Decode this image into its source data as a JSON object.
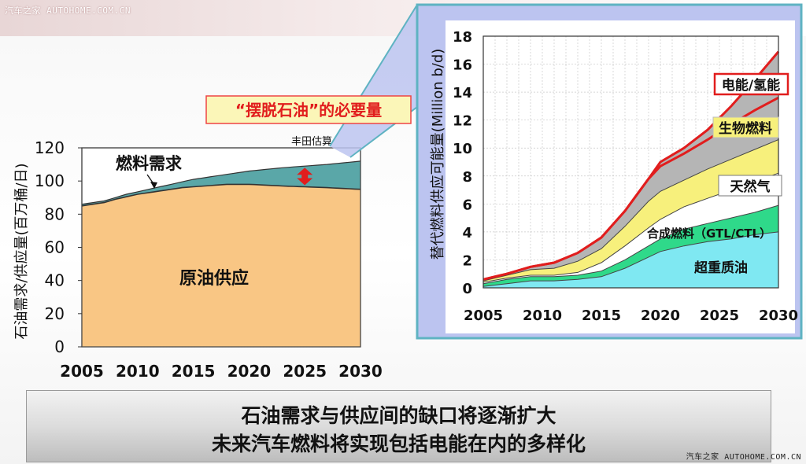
{
  "watermark_top": "汽车之家 AUTOHOME.COM.CN",
  "watermark_bottom": "汽车之家 AUTOHOME.COM.CN",
  "callout_label": "“摆脱石油”的必要量",
  "caption": {
    "line1": "石油需求与供应间的缺口将逐渐扩大",
    "line2": "未来汽车燃料将实现包括电能在内的多样化"
  },
  "colors": {
    "supply": "#f9c684",
    "gap": "#5aa7a8",
    "accent_red": "#e11d1d",
    "panel_border": "#5fb3c2",
    "panel_bg": "#bcc4f0",
    "heavy_oil": "#7fe8f2",
    "synthetic": "#2fd98a",
    "natural_gas": "#ffffff",
    "biofuel": "#f7f07c",
    "electric": "#b5b5b5"
  },
  "chart_data": [
    {
      "type": "area",
      "title": "",
      "ylabel": "石油需求/供应量(百万桶/日)",
      "xlabel": "",
      "xlim": [
        2005,
        2030
      ],
      "ylim": [
        0,
        120
      ],
      "x_ticks": [
        "2005",
        "2010",
        "2015",
        "2020",
        "2025",
        "2030"
      ],
      "y_ticks": [
        "0",
        "20",
        "40",
        "60",
        "80",
        "100",
        "120"
      ],
      "grid": false,
      "annotations": {
        "source": "丰田估算",
        "demand": "燃料需求",
        "supply": "原油供应"
      },
      "series": [
        {
          "name": "燃料需求",
          "x": [
            2005,
            2007,
            2009,
            2011,
            2013,
            2015,
            2017,
            2020,
            2023,
            2025,
            2027,
            2030
          ],
          "values": [
            86,
            88,
            92,
            95,
            98,
            101,
            103,
            106,
            108,
            109,
            110,
            112
          ]
        },
        {
          "name": "原油供应",
          "x": [
            2005,
            2007,
            2008,
            2010,
            2012,
            2014,
            2016,
            2018,
            2020,
            2023,
            2025,
            2027,
            2030
          ],
          "values": [
            85,
            87,
            89,
            92,
            94,
            96,
            97,
            98,
            98,
            97,
            96.5,
            96,
            95
          ]
        }
      ]
    },
    {
      "type": "area",
      "title": "",
      "ylabel": "替代燃料供应可能量(Million b/d)",
      "xlabel": "",
      "xlim": [
        2005,
        2030
      ],
      "ylim": [
        0,
        18
      ],
      "x_ticks": [
        "2005",
        "2010",
        "2015",
        "2020",
        "2025",
        "2030"
      ],
      "y_ticks": [
        "0",
        "2",
        "4",
        "6",
        "8",
        "10",
        "12",
        "14",
        "16",
        "18"
      ],
      "grid": true,
      "stacked": true,
      "legend_style": "inline labels",
      "x": [
        2005,
        2007,
        2009,
        2011,
        2013,
        2015,
        2017,
        2019,
        2020,
        2022,
        2024,
        2026,
        2028,
        2030
      ],
      "series": [
        {
          "name": "超重质油",
          "values": [
            0.1,
            0.3,
            0.5,
            0.5,
            0.6,
            0.8,
            1.4,
            2.2,
            2.6,
            3.0,
            3.3,
            3.5,
            3.8,
            4.0
          ]
        },
        {
          "name": "合成燃料（GTL/CTL）",
          "values": [
            0.3,
            0.6,
            0.8,
            0.8,
            0.9,
            1.2,
            2.0,
            3.0,
            3.5,
            4.2,
            4.6,
            5.0,
            5.4,
            5.9
          ]
        },
        {
          "name": "天然气",
          "values": [
            0.4,
            0.7,
            0.9,
            0.9,
            1.1,
            1.8,
            3.0,
            4.3,
            4.9,
            5.8,
            6.4,
            7.0,
            7.6,
            8.2
          ]
        },
        {
          "name": "生物燃料",
          "values": [
            0.5,
            0.9,
            1.3,
            1.4,
            1.9,
            2.8,
            4.4,
            6.2,
            6.9,
            7.7,
            8.5,
            9.2,
            9.9,
            10.6
          ]
        },
        {
          "name": "电能/氢能",
          "values": [
            0.6,
            1.0,
            1.5,
            1.8,
            2.5,
            3.6,
            5.5,
            7.8,
            9.0,
            10.0,
            11.3,
            13.0,
            14.9,
            16.9
          ]
        }
      ],
      "extra_lines": [
        {
          "name": "red_lower",
          "values": [
            0.6,
            1.0,
            1.5,
            1.8,
            2.5,
            3.6,
            5.5,
            7.8,
            8.7,
            9.6,
            10.6,
            11.7,
            12.7,
            13.6
          ]
        }
      ]
    }
  ]
}
